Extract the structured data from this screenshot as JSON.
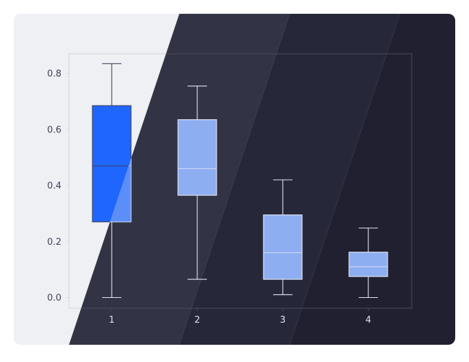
{
  "chart_data": {
    "type": "box",
    "categories": [
      "1",
      "2",
      "3",
      "4"
    ],
    "boxes": [
      {
        "whisker_low": 0.0,
        "q1": 0.27,
        "median": 0.47,
        "q3": 0.685,
        "whisker_high": 0.835
      },
      {
        "whisker_low": 0.065,
        "q1": 0.365,
        "median": 0.46,
        "q3": 0.635,
        "whisker_high": 0.755
      },
      {
        "whisker_low": 0.01,
        "q1": 0.065,
        "median": 0.16,
        "q3": 0.295,
        "whisker_high": 0.42
      },
      {
        "whisker_low": 0.0,
        "q1": 0.075,
        "median": 0.11,
        "q3": 0.162,
        "whisker_high": 0.248
      }
    ],
    "yticks": [
      0.0,
      0.2,
      0.4,
      0.6,
      0.8
    ],
    "ylim": [
      -0.04,
      0.9
    ],
    "title": "",
    "xlabel": "",
    "ylabel": "",
    "grid": false
  },
  "colors": {
    "highlight_box": "#1f66ff",
    "box_fill": "#8eaef2",
    "light_panel": "#eff0f4",
    "dark_band_1": "#323446",
    "dark_band_2": "#26283a",
    "dark_band_3": "#202030",
    "axis_text_light": "#3d3f58",
    "axis_text_dark": "#e0e2ee"
  }
}
